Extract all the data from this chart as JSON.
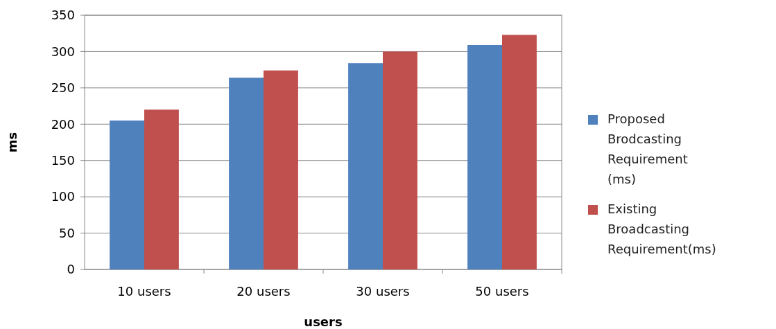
{
  "chart_data": {
    "type": "bar",
    "xlabel": "users",
    "ylabel": "ms",
    "categories": [
      "10 users",
      "20 users",
      "30 users",
      "50 users"
    ],
    "series": [
      {
        "name": "Proposed Brodcasting Requirement (ms)",
        "color": "#4f81bd",
        "values": [
          205,
          264,
          284,
          309
        ]
      },
      {
        "name": "Existing Broadcasting Requirement(ms)",
        "color": "#c0504d",
        "values": [
          220,
          274,
          300,
          323
        ]
      }
    ],
    "ylim": [
      0,
      350
    ],
    "yticks": [
      0,
      50,
      100,
      150,
      200,
      250,
      300,
      350
    ],
    "grid": "y",
    "legend": "right"
  }
}
